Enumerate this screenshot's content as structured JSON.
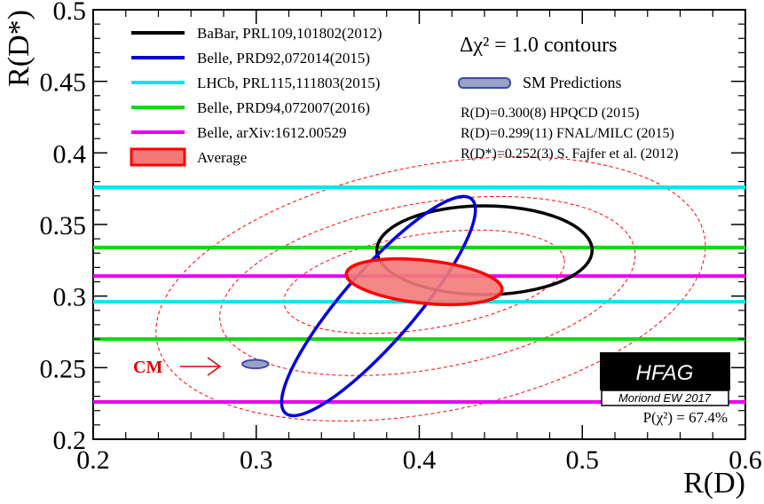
{
  "chart_data": {
    "type": "contour",
    "xlabel": "R(D)",
    "ylabel": "R(D*)",
    "xlim": [
      0.2,
      0.6
    ],
    "ylim": [
      0.2,
      0.5
    ],
    "x_ticks": [
      "0.2",
      "0.3",
      "0.4",
      "0.5",
      "0.6"
    ],
    "y_ticks": [
      "0.2",
      "0.25",
      "0.3",
      "0.35",
      "0.4",
      "0.45",
      "0.5"
    ],
    "contour_title": "Δχ² = 1.0 contours",
    "series": [
      {
        "name": "BaBar, PRL109,101802(2012)",
        "color": "#000000",
        "shape": "ellipse",
        "cx": 0.44,
        "cy": 0.332,
        "rx": 0.066,
        "ry": 0.031,
        "angle_deg": 0
      },
      {
        "name": "Belle, PRD92,072014(2015)",
        "color": "#0000e0",
        "shape": "ellipse",
        "cx": 0.375,
        "cy": 0.293,
        "rx": 0.087,
        "ry": 0.025,
        "angle_deg": -49
      },
      {
        "name": "LHCb, PRL115,111803(2015)",
        "color": "#00e5ee",
        "shape": "band",
        "y_low": 0.296,
        "y_high": 0.376
      },
      {
        "name": "Belle, PRD94,072007(2016)",
        "color": "#00dd00",
        "shape": "band",
        "y_low": 0.27,
        "y_high": 0.334
      },
      {
        "name": "Belle, arXiv:1612.00529",
        "color": "#ee00ee",
        "shape": "band",
        "y_low": 0.226,
        "y_high": 0.314
      },
      {
        "name": "Average",
        "color": "#ff0000",
        "fill": "#f47a7a",
        "shape": "ellipse",
        "cx": 0.403,
        "cy": 0.31,
        "rx": 0.048,
        "ry": 0.015,
        "angle_deg": 6
      }
    ],
    "average_sigma_contours": [
      {
        "cx": 0.403,
        "cy": 0.31,
        "rx": 0.087,
        "ry": 0.033,
        "angle_deg": -9
      },
      {
        "cx": 0.405,
        "cy": 0.307,
        "rx": 0.129,
        "ry": 0.058,
        "angle_deg": -10
      },
      {
        "cx": 0.407,
        "cy": 0.305,
        "rx": 0.171,
        "ry": 0.086,
        "angle_deg": -11
      }
    ],
    "sm_prediction": {
      "label": "SM Predictions",
      "cx": 0.2995,
      "cy": 0.2525,
      "rx": 0.008,
      "ry": 0.003,
      "fill": "#9aa1c8",
      "stroke": "#3e4aa8"
    },
    "notes": [
      "R(D)=0.300(8) HPQCD (2015)",
      "R(D)=0.299(11) FNAL/MILC (2015)",
      "R(D*)=0.252(3) S. Fajfer et al. (2012)"
    ],
    "cm_label": "CM",
    "hfag": {
      "title": "HFAG",
      "subtitle": "Moriond EW 2017",
      "pvalue": "P(χ²) = 67.4%"
    }
  }
}
